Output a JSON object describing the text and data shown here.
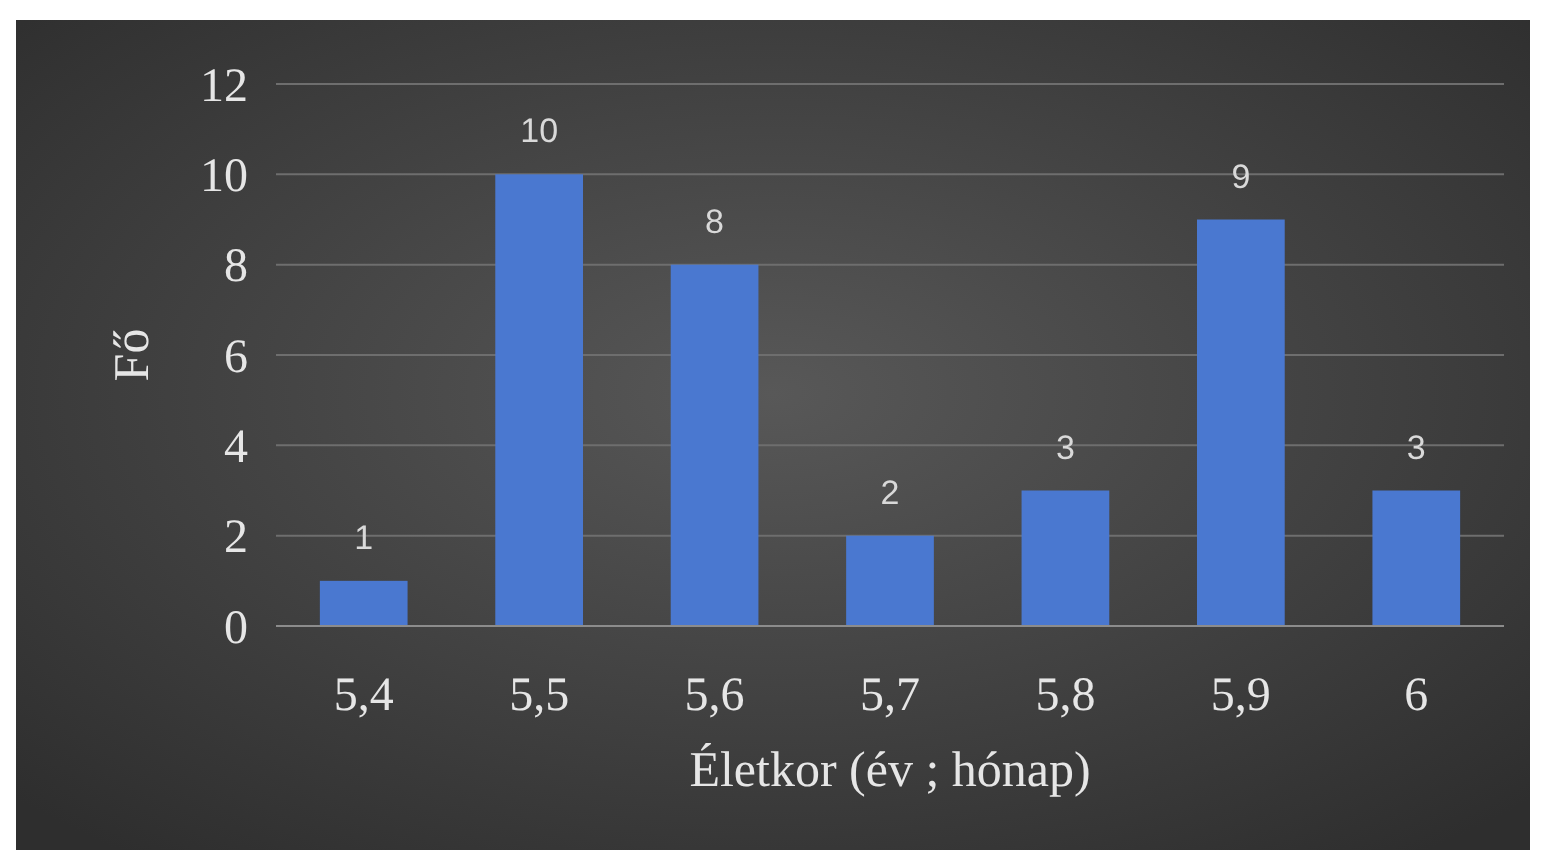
{
  "chart_data": {
    "type": "bar",
    "xlabel": "Életkor (év ; hónap)",
    "ylabel": "Fő",
    "categories": [
      "5,4",
      "5,5",
      "5,6",
      "5,7",
      "5,8",
      "5,9",
      "6"
    ],
    "values": [
      1,
      10,
      8,
      2,
      3,
      9,
      3
    ],
    "color": "#4a78d0",
    "ylim": [
      0,
      12
    ],
    "yticks": [
      0,
      2,
      4,
      6,
      8,
      10,
      12
    ],
    "grid": "y",
    "data_labels": true
  }
}
